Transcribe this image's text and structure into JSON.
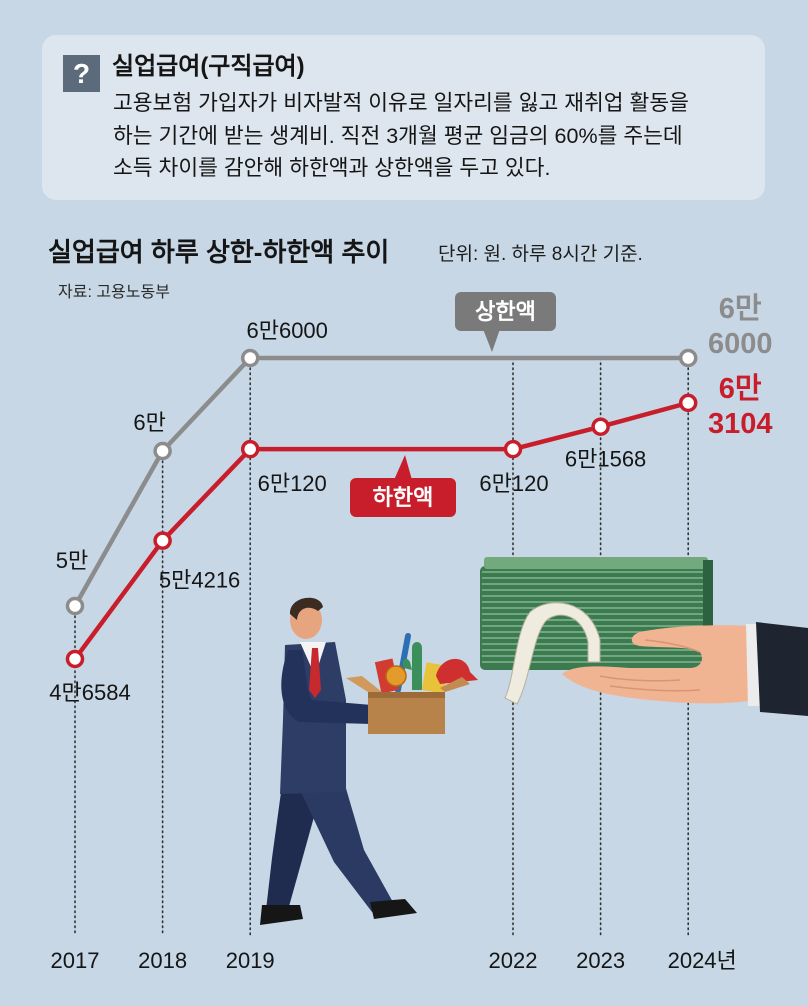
{
  "colors": {
    "background": "#c7d7e5",
    "info_box": "#dde6ee",
    "icon_bg": "#5b6b7b",
    "upper_series": "#8c8c8c",
    "lower_series": "#c81e2b",
    "text": "#151515"
  },
  "info_box": {
    "icon": "question-icon",
    "icon_glyph": "?",
    "title": "실업급여(구직급여)",
    "body": [
      "고용보험 가입자가 비자발적 이유로 일자리를 잃고 재취업 활동을",
      "하는 기간에 받는 생계비. 직전 3개월 평균 임금의 60%를 주는데",
      "소득 차이를 감안해 하한액과 상한액을 두고 있다."
    ]
  },
  "illustrations": [
    "businessman-carrying-box",
    "hand-holding-cash-stack"
  ],
  "chart_data": {
    "type": "line",
    "title": "실업급여 하루 상한-하한액 추이",
    "unit_note": "단위: 원. 하루 8시간 기준.",
    "source": "자료: 고용노동부",
    "x": [
      2017,
      2018,
      2019,
      2022,
      2023,
      2024
    ],
    "x_tick_labels": [
      "2017",
      "2018",
      "2019",
      "2022",
      "2023",
      "2024년"
    ],
    "grid": "vertical dotted lines",
    "legend": "inline callouts on lines",
    "series": [
      {
        "name": "상한액",
        "color": "#8c8c8c",
        "points": [
          {
            "x": 2017,
            "y": 50000,
            "label": "5만"
          },
          {
            "x": 2018,
            "y": 60000,
            "label": "6만"
          },
          {
            "x": 2019,
            "y": 66000,
            "label": "6만6000"
          },
          {
            "x": 2024,
            "y": 66000,
            "label": [
              "6만",
              "6000"
            ]
          }
        ]
      },
      {
        "name": "하한액",
        "color": "#c81e2b",
        "points": [
          {
            "x": 2017,
            "y": 46584,
            "label": "4만6584"
          },
          {
            "x": 2018,
            "y": 54216,
            "label": "5만4216"
          },
          {
            "x": 2019,
            "y": 60120,
            "label": "6만120"
          },
          {
            "x": 2022,
            "y": 60120,
            "label": "6만120"
          },
          {
            "x": 2023,
            "y": 61568,
            "label": "6만1568"
          },
          {
            "x": 2024,
            "y": 63104,
            "label": [
              "6만",
              "3104"
            ]
          }
        ]
      }
    ]
  }
}
